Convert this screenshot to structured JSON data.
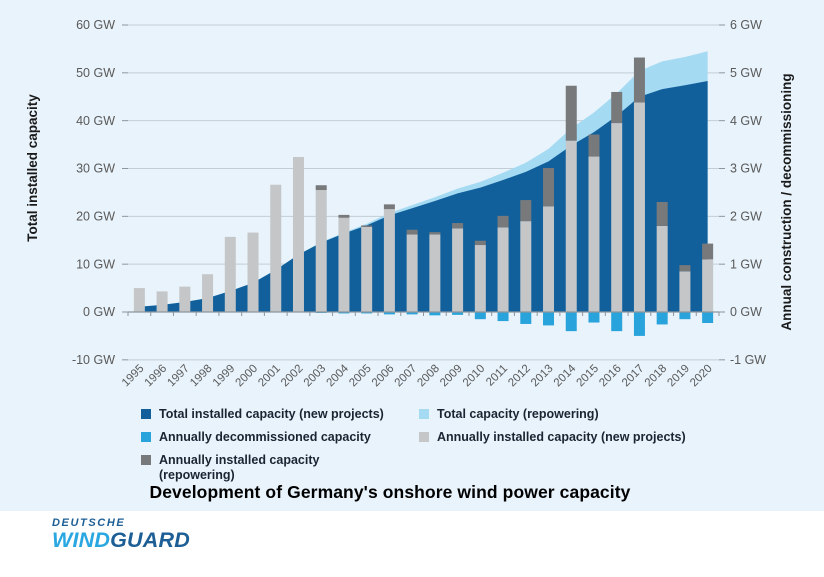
{
  "page": {
    "title": "Development of Germany's onshore wind power capacity"
  },
  "chart_data": {
    "type": "combo (stacked area + stacked bar)",
    "x": [
      "1995",
      "1996",
      "1997",
      "1998",
      "1999",
      "2000",
      "2001",
      "2002",
      "2003",
      "2004",
      "2005",
      "2006",
      "2007",
      "2008",
      "2009",
      "2010",
      "2011",
      "2012",
      "2013",
      "2014",
      "2015",
      "2016",
      "2017",
      "2018",
      "2019",
      "2020"
    ],
    "left_axis": {
      "label": "Total installed capacity",
      "unit": "GW",
      "min": -10,
      "max": 60,
      "step": 10,
      "tick_labels": [
        "60 GW",
        "50 GW",
        "40 GW",
        "30 GW",
        "20 GW",
        "10 GW",
        "0 GW",
        "-10 GW"
      ]
    },
    "right_axis": {
      "label": "Annual construction / decommissioning",
      "unit": "GW",
      "min": -1,
      "max": 6,
      "step": 1,
      "tick_labels": [
        "6 GW",
        "5 GW",
        "4 GW",
        "3 GW",
        "2 GW",
        "1 GW",
        "0 GW",
        "-1 GW"
      ]
    },
    "grid": true,
    "legend_position": "bottom",
    "series": [
      {
        "name": "Total installed capacity (new projects)",
        "type": "area",
        "axis": "left",
        "color": "#11609c",
        "values": [
          1.1,
          1.5,
          2.1,
          2.9,
          4.4,
          6.1,
          8.8,
          12.0,
          14.5,
          16.4,
          18.1,
          20.2,
          21.7,
          23.2,
          24.8,
          26.0,
          27.6,
          29.3,
          31.5,
          34.8,
          37.6,
          41.0,
          45.0,
          46.6,
          47.4,
          48.3
        ]
      },
      {
        "name": "Total capacity (repowering)",
        "type": "area",
        "axis": "left",
        "color": "#a5daf3",
        "stacked_on": "Total installed capacity (new projects)",
        "values": [
          0,
          0,
          0,
          0,
          0,
          0,
          0,
          0,
          0.1,
          0.2,
          0.35,
          0.5,
          0.65,
          0.8,
          1.0,
          1.2,
          1.5,
          1.9,
          2.6,
          3.6,
          4.1,
          4.7,
          5.4,
          5.8,
          5.9,
          6.2
        ]
      },
      {
        "name": "Annually installed capacity (new projects)",
        "type": "bar",
        "axis": "right",
        "color": "#c4c6c8",
        "values": [
          0.5,
          0.43,
          0.53,
          0.79,
          1.57,
          1.66,
          2.66,
          3.24,
          2.55,
          1.97,
          1.78,
          2.15,
          1.62,
          1.62,
          1.75,
          1.4,
          1.77,
          1.9,
          2.21,
          3.58,
          3.25,
          3.95,
          4.38,
          1.8,
          0.85,
          1.1
        ]
      },
      {
        "name": "Annually installed capacity (repowering)",
        "type": "bar",
        "axis": "right",
        "color": "#77797b",
        "stacked_on": "Annually installed capacity (new projects)",
        "values": [
          0,
          0,
          0,
          0,
          0,
          0,
          0,
          0,
          0.1,
          0.06,
          0.03,
          0.1,
          0.1,
          0.05,
          0.11,
          0.09,
          0.24,
          0.44,
          0.8,
          1.15,
          0.46,
          0.65,
          0.94,
          0.5,
          0.13,
          0.33
        ]
      },
      {
        "name": "Annually decommissioned capacity",
        "type": "bar",
        "axis": "right",
        "color": "#29a3dc",
        "values": [
          0,
          0,
          0,
          0,
          0,
          0,
          0,
          0,
          -0.02,
          -0.03,
          -0.03,
          -0.05,
          -0.05,
          -0.07,
          -0.06,
          -0.15,
          -0.19,
          -0.25,
          -0.28,
          -0.4,
          -0.22,
          -0.4,
          -0.5,
          -0.26,
          -0.15,
          -0.23
        ]
      }
    ]
  },
  "legend": {
    "items": [
      {
        "label": "Total installed capacity (new projects)",
        "color": "#11609c"
      },
      {
        "label": "Total capacity (repowering)",
        "color": "#a5daf3"
      },
      {
        "label": "Annually decommissioned capacity",
        "color": "#29a3dc"
      },
      {
        "label": "Annually installed capacity (new projects)",
        "color": "#c4c6c8"
      },
      {
        "label": "Annually installed capacity\n(repowering)",
        "color": "#77797b"
      }
    ]
  },
  "footer": {
    "logo_top": "DEUTSCHE",
    "logo_main_1": "WIND",
    "logo_main_2": "GUARD",
    "brand_light_blue": "#2aa7e0",
    "brand_dark_blue": "#1d5e95"
  },
  "colors": {
    "page_background": "#e8f3fb",
    "gridline": "#c3cdd6",
    "axis_line": "#8e959c",
    "tick_label": "#595959",
    "axis_title": "#1a1a1a"
  }
}
